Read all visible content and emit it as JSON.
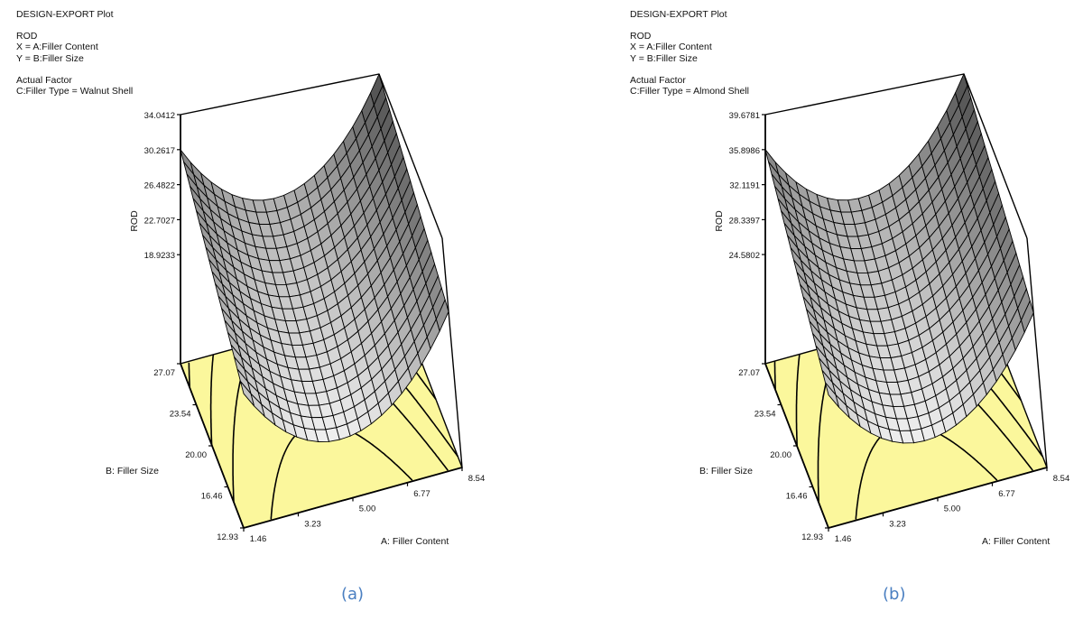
{
  "panels": [
    {
      "caption": "(a)",
      "header": {
        "title": "DESIGN-EXPORT Plot",
        "response": "ROD",
        "x_def": "X = A:Filler Content",
        "y_def": "Y = B:Filler Size",
        "factor_heading": "Actual Factor",
        "factor_value": "C:Filler Type = Walnut Shell"
      }
    },
    {
      "caption": "(b)",
      "header": {
        "title": "DESIGN-EXPORT Plot",
        "response": "ROD",
        "x_def": "X = A:Filler Content",
        "y_def": "Y = B:Filler Size",
        "factor_heading": "Actual Factor",
        "factor_value": "C:Filler Type = Almond Shell"
      }
    }
  ],
  "chart_data": [
    {
      "type": "surface",
      "floor": "contour",
      "xlabel": "A: Filler Content",
      "ylabel": "B: Filler Size",
      "zlabel": "ROD",
      "x_ticks": [
        "1.46",
        "3.23",
        "5.00",
        "6.77",
        "8.54"
      ],
      "y_ticks": [
        "12.93",
        "16.46",
        "20.00",
        "23.54",
        "27.07"
      ],
      "z_ticks": [
        "18.9233",
        "22.7027",
        "26.4822",
        "30.2617",
        "34.0412"
      ],
      "xlim": [
        1.46,
        8.54
      ],
      "ylim": [
        12.93,
        27.07
      ],
      "zmax": 34.0412,
      "surface_color": "grayscale",
      "floor_color": "#fbf79c"
    },
    {
      "type": "surface",
      "floor": "contour",
      "xlabel": "A: Filler Content",
      "ylabel": "B: Filler Size",
      "zlabel": "ROD",
      "x_ticks": [
        "1.46",
        "3.23",
        "5.00",
        "6.77",
        "8.54"
      ],
      "y_ticks": [
        "12.93",
        "16.46",
        "20.00",
        "23.54",
        "27.07"
      ],
      "z_ticks": [
        "24.5802",
        "28.3397",
        "32.1191",
        "35.8986",
        "39.6781"
      ],
      "xlim": [
        1.46,
        8.54
      ],
      "ylim": [
        12.93,
        27.07
      ],
      "zmax": 39.6781,
      "surface_color": "grayscale",
      "floor_color": "#fbf79c"
    }
  ]
}
